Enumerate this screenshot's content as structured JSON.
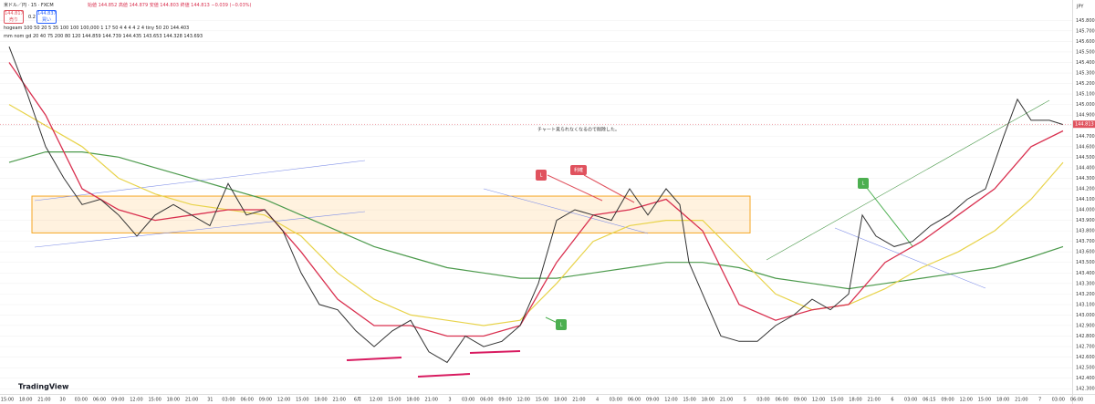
{
  "header": {
    "symbol": "米ドル／円 · 15 · FXCM",
    "ohlc": "始値 144.852 高値 144.879 安値 144.803 終値 144.813 −0.039 (−0.03%)",
    "sell_price": "144.817",
    "sell_label": "売り",
    "spread": "0.2",
    "buy_price": "144.837",
    "buy_label": "買い",
    "indicator1": "hogeam 100 50 20 5 35 100 100 100,000 1 17 50 4 4 4 4 2 4 tiny 50 20 144.403",
    "indicator2": "mm nom gd 20 40 75 200 80 120 144.859 144.739 144.435 143.653 144.328 143.693",
    "logo": "TradingView"
  },
  "chart_data": {
    "type": "line",
    "note": "チャート見られなくなるので削除した。",
    "markers": [
      "利確",
      "L",
      "L",
      "L"
    ],
    "currency": "JPY",
    "last_price": 144.813,
    "zone": [
      143.78,
      144.13
    ],
    "xlim": [
      0,
      1175
    ],
    "ylim": [
      142.25,
      145.95
    ],
    "x_labels": [
      "15:00",
      "18:00",
      "21:00",
      "30",
      "03:00",
      "06:00",
      "09:00",
      "12:00",
      "15:00",
      "18:00",
      "21:00",
      "31",
      "03:00",
      "06:00",
      "09:00",
      "12:00",
      "15:00",
      "18:00",
      "21:00",
      "6月",
      "12:00",
      "15:00",
      "18:00",
      "21:00",
      "3",
      "03:00",
      "06:00",
      "09:00",
      "12:00",
      "15:00",
      "18:00",
      "21:00",
      "4",
      "03:00",
      "06:00",
      "09:00",
      "12:00",
      "15:00",
      "18:00",
      "21:00",
      "5",
      "03:00",
      "06:00",
      "09:00",
      "12:00",
      "15:00",
      "18:00",
      "21:00",
      "6",
      "03:00",
      "06:15",
      "09:00",
      "12:00",
      "15:00",
      "18:00",
      "21:00",
      "7",
      "03:00",
      "06:00"
    ],
    "yticks": [
      {
        "value": 145.8,
        "label": "145.800"
      },
      {
        "value": 145.7,
        "label": "145.700"
      },
      {
        "value": 145.6,
        "label": "145.600"
      },
      {
        "value": 145.5,
        "label": "145.500"
      },
      {
        "value": 145.4,
        "label": "145.400"
      },
      {
        "value": 145.3,
        "label": "145.300"
      },
      {
        "value": 145.2,
        "label": "145.200"
      },
      {
        "value": 145.1,
        "label": "145.100"
      },
      {
        "value": 145.0,
        "label": "145.000"
      },
      {
        "value": 144.9,
        "label": "144.900"
      },
      {
        "value": 144.8,
        "label": "144.800"
      },
      {
        "value": 144.7,
        "label": "144.700"
      },
      {
        "value": 144.6,
        "label": "144.600"
      },
      {
        "value": 144.5,
        "label": "144.500"
      },
      {
        "value": 144.4,
        "label": "144.400"
      },
      {
        "value": 144.3,
        "label": "144.300"
      },
      {
        "value": 144.2,
        "label": "144.200"
      },
      {
        "value": 144.1,
        "label": "144.100"
      },
      {
        "value": 144.0,
        "label": "144.000"
      },
      {
        "value": 143.9,
        "label": "143.900"
      },
      {
        "value": 143.8,
        "label": "143.800"
      },
      {
        "value": 143.7,
        "label": "143.700"
      },
      {
        "value": 143.6,
        "label": "143.600"
      },
      {
        "value": 143.5,
        "label": "143.500"
      },
      {
        "value": 143.4,
        "label": "143.400"
      },
      {
        "value": 143.3,
        "label": "143.300"
      },
      {
        "value": 143.2,
        "label": "143.200"
      },
      {
        "value": 143.1,
        "label": "143.100"
      },
      {
        "value": 143.0,
        "label": "143.000"
      },
      {
        "value": 142.9,
        "label": "142.900"
      },
      {
        "value": 142.8,
        "label": "142.800"
      },
      {
        "value": 142.7,
        "label": "142.700"
      },
      {
        "value": 142.6,
        "label": "142.600"
      },
      {
        "value": 142.5,
        "label": "142.500"
      },
      {
        "value": 142.4,
        "label": "142.400"
      },
      {
        "value": 142.3,
        "label": "142.300"
      }
    ],
    "grid": true,
    "series": [
      {
        "color": "#333333",
        "width": 1,
        "x": [
          10,
          30,
          50,
          70,
          90,
          110,
          130,
          150,
          170,
          190,
          210,
          230,
          250,
          270,
          290,
          310,
          330,
          350,
          370,
          390,
          410,
          430,
          450,
          470,
          490,
          510,
          530,
          550,
          570,
          590,
          610,
          630,
          650,
          670,
          690,
          710,
          730,
          745,
          755,
          770,
          790,
          810,
          830,
          850,
          870,
          890,
          910,
          930,
          945,
          960,
          980,
          1000,
          1020,
          1040,
          1060,
          1080,
          1100,
          1115,
          1130,
          1150,
          1165
        ],
        "values": [
          145.55,
          145.1,
          144.6,
          144.3,
          144.05,
          144.1,
          143.95,
          143.75,
          143.95,
          144.05,
          143.95,
          143.85,
          144.25,
          143.95,
          144.0,
          143.8,
          143.4,
          143.1,
          143.05,
          142.85,
          142.7,
          142.85,
          142.95,
          142.65,
          142.55,
          142.8,
          142.7,
          142.75,
          142.9,
          143.3,
          143.9,
          144.0,
          143.95,
          143.9,
          144.2,
          143.95,
          144.2,
          144.05,
          143.5,
          143.2,
          142.8,
          142.75,
          142.75,
          142.9,
          143.0,
          143.15,
          143.05,
          143.2,
          143.95,
          143.75,
          143.65,
          143.7,
          143.85,
          143.95,
          144.1,
          144.2,
          144.7,
          145.05,
          144.85,
          144.85,
          144.81
        ]
      },
      {
        "color": "#d9304f",
        "width": 1.3,
        "x": [
          10,
          50,
          90,
          130,
          170,
          210,
          250,
          290,
          330,
          370,
          410,
          450,
          490,
          530,
          570,
          610,
          650,
          690,
          730,
          770,
          810,
          850,
          890,
          930,
          970,
          1010,
          1050,
          1090,
          1130,
          1165
        ],
        "values": [
          145.4,
          144.9,
          144.2,
          144.0,
          143.9,
          143.95,
          144.0,
          144.0,
          143.6,
          143.15,
          142.9,
          142.9,
          142.8,
          142.8,
          142.9,
          143.5,
          143.95,
          144.0,
          144.1,
          143.8,
          143.1,
          142.95,
          143.05,
          143.1,
          143.5,
          143.7,
          143.95,
          144.2,
          144.6,
          144.75
        ]
      },
      {
        "color": "#e8d34a",
        "width": 1.2,
        "x": [
          10,
          50,
          90,
          130,
          170,
          210,
          250,
          290,
          330,
          370,
          410,
          450,
          490,
          530,
          570,
          610,
          650,
          690,
          730,
          770,
          810,
          850,
          890,
          930,
          970,
          1010,
          1050,
          1090,
          1130,
          1165
        ],
        "values": [
          145.0,
          144.8,
          144.6,
          144.3,
          144.15,
          144.05,
          144.0,
          143.95,
          143.75,
          143.4,
          143.15,
          143.0,
          142.95,
          142.9,
          142.95,
          143.3,
          143.7,
          143.85,
          143.9,
          143.9,
          143.55,
          143.2,
          143.05,
          143.1,
          143.25,
          143.45,
          143.6,
          143.8,
          144.1,
          144.45
        ]
      },
      {
        "color": "#4c9a4c",
        "width": 1.2,
        "x": [
          10,
          50,
          90,
          130,
          170,
          210,
          250,
          290,
          330,
          370,
          410,
          450,
          490,
          530,
          570,
          610,
          650,
          690,
          730,
          770,
          810,
          850,
          890,
          930,
          970,
          1010,
          1050,
          1090,
          1130,
          1165
        ],
        "values": [
          144.45,
          144.55,
          144.55,
          144.5,
          144.4,
          144.3,
          144.2,
          144.1,
          143.95,
          143.8,
          143.65,
          143.55,
          143.45,
          143.4,
          143.35,
          143.35,
          143.4,
          143.45,
          143.5,
          143.5,
          143.45,
          143.35,
          143.3,
          143.25,
          143.3,
          143.35,
          143.4,
          143.45,
          143.55,
          143.65
        ]
      }
    ]
  }
}
